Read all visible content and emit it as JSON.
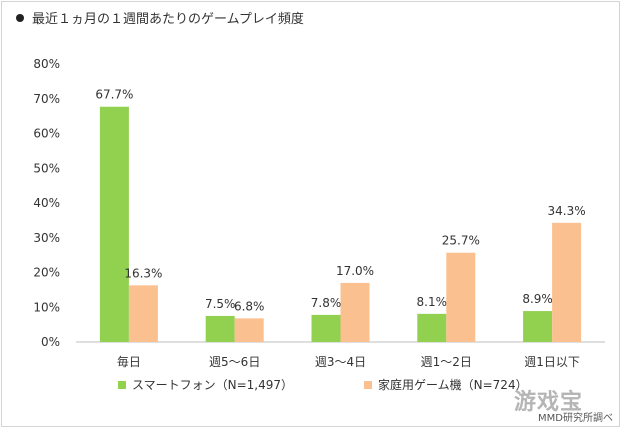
{
  "title": "最近１ヵ月の１週間あたりのゲームプレイ頻度",
  "credit": "MMD研究所調べ",
  "watermark": "游戏宝",
  "colors": {
    "smartphone": "#92d050",
    "console": "#fac090"
  },
  "chart_data": {
    "type": "bar",
    "title": "最近１ヵ月の１週間あたりのゲームプレイ頻度",
    "categories": [
      "毎日",
      "週5〜6日",
      "週3〜4日",
      "週1〜2日",
      "週1日以下"
    ],
    "series": [
      {
        "name": "スマートフォン（N=1,497）",
        "values": [
          67.7,
          7.5,
          7.8,
          8.1,
          8.9
        ]
      },
      {
        "name": "家庭用ゲーム機（N=724）",
        "values": [
          16.3,
          6.8,
          17.0,
          25.7,
          34.3
        ]
      }
    ],
    "value_labels": [
      [
        "67.7%",
        "7.5%",
        "7.8%",
        "8.1%",
        "8.9%"
      ],
      [
        "16.3%",
        "6.8%",
        "17.0%",
        "25.7%",
        "34.3%"
      ]
    ],
    "yticks": [
      0,
      10,
      20,
      30,
      40,
      50,
      60,
      70,
      80
    ],
    "ytick_labels": [
      "0%",
      "10%",
      "20%",
      "30%",
      "40%",
      "50%",
      "60%",
      "70%",
      "80%"
    ],
    "ylim": [
      0,
      80
    ],
    "xlabel": "",
    "ylabel": "",
    "grid": false,
    "legend_position": "bottom"
  }
}
